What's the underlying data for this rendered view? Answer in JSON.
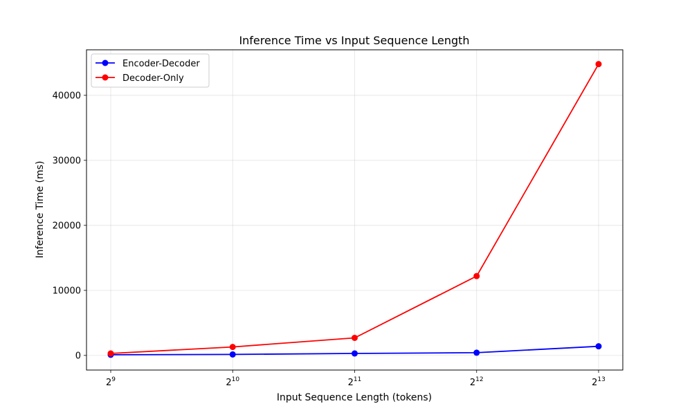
{
  "chart_data": {
    "type": "line",
    "title": "Inference Time vs Input Sequence Length",
    "xlabel": "Input Sequence Length (tokens)",
    "ylabel": "Inference Time (ms)",
    "x_scale": "log2",
    "x": [
      512,
      1024,
      2048,
      4096,
      8192
    ],
    "x_tick_labels": [
      {
        "base": "2",
        "exp": "9"
      },
      {
        "base": "2",
        "exp": "10"
      },
      {
        "base": "2",
        "exp": "11"
      },
      {
        "base": "2",
        "exp": "12"
      },
      {
        "base": "2",
        "exp": "13"
      }
    ],
    "y_ticks": [
      0,
      10000,
      20000,
      30000,
      40000
    ],
    "ylim": [
      -2250,
      47000
    ],
    "grid": true,
    "legend_position": "top-left",
    "series": [
      {
        "name": "Encoder-Decoder",
        "color": "#0000ff",
        "values": [
          100,
          150,
          300,
          420,
          1400
        ]
      },
      {
        "name": "Decoder-Only",
        "color": "#ff0000",
        "values": [
          300,
          1300,
          2700,
          12200,
          44800
        ]
      }
    ]
  }
}
